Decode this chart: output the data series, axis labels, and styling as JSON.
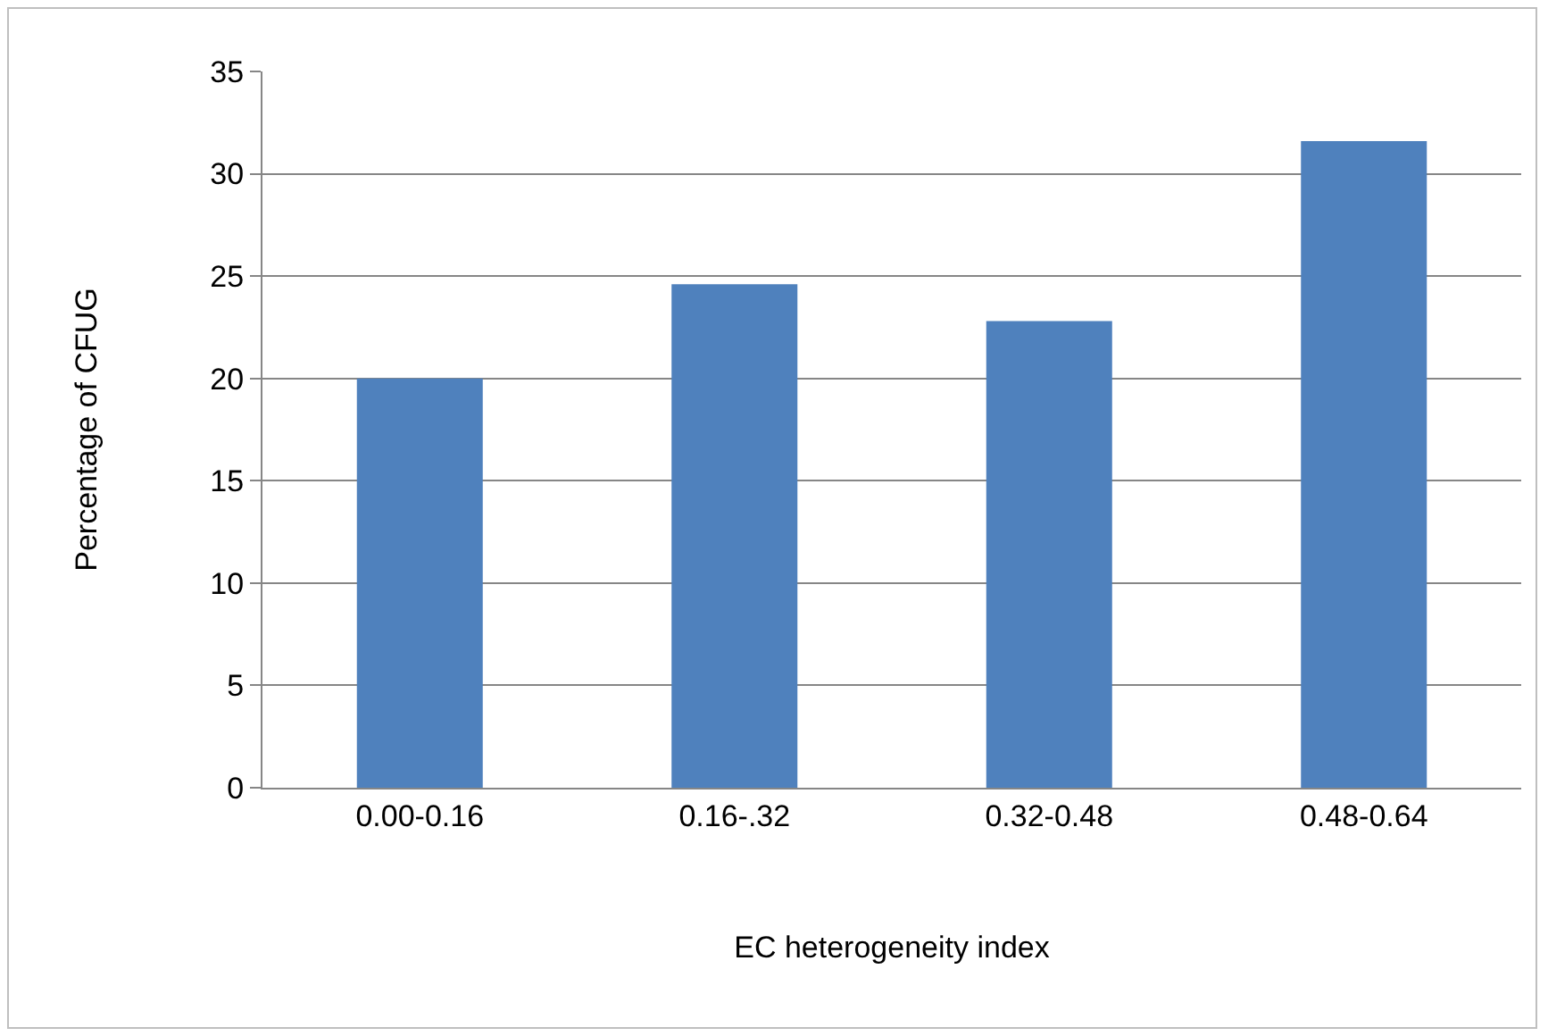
{
  "chart_data": {
    "type": "bar",
    "xlabel": "EC heterogeneity index",
    "ylabel": "Percentage of CFUG",
    "categories": [
      "0.00-0.16",
      "0.16-.32",
      "0.32-0.48",
      "0.48-0.64"
    ],
    "values": [
      20,
      24.6,
      22.8,
      31.6
    ],
    "color": "#4f81bd",
    "ylim": [
      0,
      35
    ],
    "yticks": [
      0,
      5,
      10,
      15,
      20,
      25,
      30,
      35
    ],
    "grid": "y"
  }
}
